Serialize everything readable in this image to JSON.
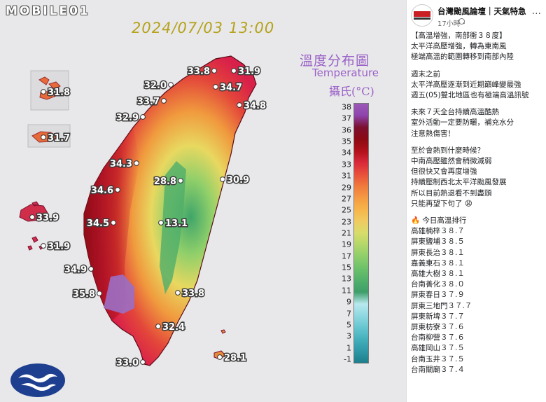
{
  "watermark": "MOBILE01",
  "map": {
    "datetime": "2024/07/03 13:00",
    "legend_title_cn": "溫度分布圖",
    "legend_title_en": "Temperature",
    "legend_unit": "攝氏(°C)",
    "colorbar_ticks": [
      "38",
      "37",
      "36",
      "35",
      "34",
      "33",
      "31",
      "29",
      "27",
      "25",
      "23",
      "21",
      "19",
      "17",
      "15",
      "13",
      "11",
      "9",
      "7",
      "5",
      "3",
      "1",
      "-1"
    ],
    "colorbar_colors": [
      "#9b59b6",
      "#8e44ad",
      "#7b1030",
      "#8b0a14",
      "#b0101a",
      "#d8283a",
      "#e8503c",
      "#f07a3c",
      "#f59a42",
      "#f6b54a",
      "#efcc62",
      "#d7dc6a",
      "#b2d76a",
      "#8dce6a",
      "#6cc16a",
      "#52b06a",
      "#3e9e6a",
      "#b8e8ee",
      "#8fd8e0",
      "#66c6d0",
      "#44b0bc",
      "#2e98a6",
      "#1e7e8a"
    ],
    "stations": [
      {
        "value": "31.8",
        "location": "Matsu (Nangan)"
      },
      {
        "value": "31.7",
        "location": "Matsu (Dongyin)"
      },
      {
        "value": "33.9",
        "location": "Kinmen"
      },
      {
        "value": "31.9",
        "location": "Penghu"
      },
      {
        "value": "32.0",
        "location": "Hsinchu"
      },
      {
        "value": "33.8",
        "location": "Taipei West"
      },
      {
        "value": "31.9",
        "location": "Keelung"
      },
      {
        "value": "34.7",
        "location": "Taipei"
      },
      {
        "value": "33.7",
        "location": "Taoyuan"
      },
      {
        "value": "34.8",
        "location": "Yilan"
      },
      {
        "value": "32.9",
        "location": "Miaoli"
      },
      {
        "value": "34.3",
        "location": "Taichung"
      },
      {
        "value": "28.8",
        "location": "Nantou"
      },
      {
        "value": "30.9",
        "location": "Hualien"
      },
      {
        "value": "34.6",
        "location": "Changhua"
      },
      {
        "value": "13.1",
        "location": "Yushan"
      },
      {
        "value": "34.5",
        "location": "Chiayi"
      },
      {
        "value": "34.9",
        "location": "Tainan"
      },
      {
        "value": "35.8",
        "location": "Kaohsiung"
      },
      {
        "value": "33.8",
        "location": "Chenggong"
      },
      {
        "value": "32.4",
        "location": "Taitung"
      },
      {
        "value": "33.0",
        "location": "Hengchun"
      },
      {
        "value": "28.1",
        "location": "Lanyu"
      }
    ]
  },
  "post": {
    "page_name": "台灣颱風論壇｜天氣特急",
    "time": "17小時・",
    "more": "···",
    "lines": [
      "【高溫增強，南部衝３８度】",
      "太平洋高壓增強，轉為東南風",
      "極端高溫的範圍轉移到南部內陸",
      "",
      "週末之前",
      "太平洋高壓逐漸到近期巔峰變最強",
      "週五(05)雙北地區也有極端高溫訊號",
      "",
      "未來７天全台持續高溫酷熱",
      "室外活動一定要防曬，補充水分",
      "注意熱傷害！",
      "",
      "至於會熱到什麼時候？",
      "中南高壓雖然會稍微減弱",
      "但很快又會再度增強",
      "持續壓制西北太平洋颱風發展",
      "所以目前熱退看不到盡頭",
      "只能再望下句了 😩",
      "",
      "🔥 今日高溫排行"
    ],
    "ranking": [
      "高雄楠梓３８.７",
      "屏東鹽埔３８.５",
      "屏東長治３８.１",
      "嘉義東石３８.１",
      "高雄大樹３８.１",
      "台南善化３８.０",
      "屏東春日３７.９",
      "屏東三地門３７.７",
      "屏東新埤３７.７",
      "屏東枋寮３７.６",
      "台南柳營３７.６",
      "高雄岡山３７.５",
      "台南玉井３７.５",
      "台南關廟３７.４"
    ]
  }
}
